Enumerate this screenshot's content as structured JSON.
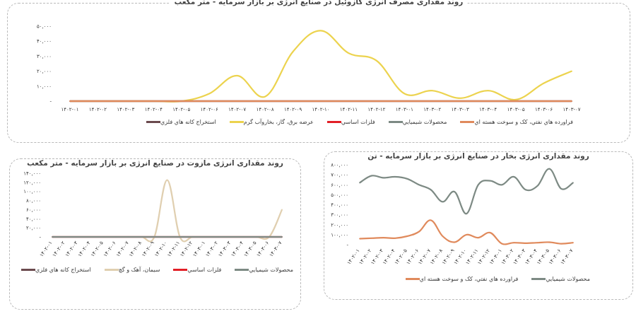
{
  "chart_data": [
    {
      "type": "line",
      "title": "روند مقداری مصرف انرژی گازوئیل در صنایع انرژی بر بازار سرمایه - متر مکعب",
      "categories": [
        "۱۴۰۲-۰۱",
        "۱۴۰۲-۰۲",
        "۱۴۰۲-۰۳",
        "۱۴۰۲-۰۴",
        "۱۴۰۲-۰۵",
        "۱۴۰۲-۰۶",
        "۱۴۰۲-۰۷",
        "۱۴۰۲-۰۸",
        "۱۴۰۲-۰۹",
        "۱۴۰۲-۱۰",
        "۱۴۰۲-۱۱",
        "۱۴۰۲-۱۲",
        "۱۴۰۳-۰۱",
        "۱۴۰۳-۰۲",
        "۱۴۰۳-۰۳",
        "۱۴۰۳-۰۴",
        "۱۴۰۳-۰۵",
        "۱۴۰۳-۰۶",
        "۱۴۰۳-۰۷"
      ],
      "y_tick_labels": [
        "-",
        "۱۰,۰۰۰",
        "۲۰,۰۰۰",
        "۳۰,۰۰۰",
        "۴۰,۰۰۰",
        "۵۰,۰۰۰"
      ],
      "ylim": [
        0,
        50000
      ],
      "grid": false,
      "legend_position": "bottom",
      "series": [
        {
          "name": "استخراج کانه هاي فلزي",
          "color": "#6b4a4e",
          "values": [
            0,
            0,
            0,
            0,
            0,
            0,
            0,
            0,
            0,
            0,
            0,
            0,
            0,
            0,
            0,
            0,
            0,
            0,
            0
          ]
        },
        {
          "name": "عرضه برق، گاز، بخاروآب گرم",
          "color": "#ecd34e",
          "values": [
            0,
            0,
            0,
            0,
            0,
            5000,
            17000,
            3000,
            33000,
            47000,
            32000,
            27000,
            5000,
            7000,
            2000,
            7000,
            1000,
            12000,
            20000
          ]
        },
        {
          "name": "فلزات اساسي",
          "color": "#e21f26",
          "values": [
            0,
            0,
            0,
            0,
            0,
            0,
            0,
            0,
            0,
            0,
            0,
            0,
            0,
            0,
            0,
            0,
            0,
            0,
            0
          ]
        },
        {
          "name": "محصولات شيميايي",
          "color": "#7d8a84",
          "values": [
            0,
            0,
            0,
            0,
            0,
            0,
            0,
            0,
            0,
            0,
            0,
            0,
            0,
            0,
            0,
            0,
            0,
            0,
            0
          ]
        },
        {
          "name": "فراورده هاي نفتي، كک و سوخت هسته اي",
          "color": "#e08a5c",
          "values": [
            0,
            0,
            0,
            0,
            0,
            0,
            0,
            0,
            0,
            0,
            0,
            0,
            0,
            0,
            0,
            0,
            0,
            0,
            0
          ]
        }
      ]
    },
    {
      "type": "line",
      "title": "روند مقداری انرژی مازوت در صنایع انرژی بر بازار سرمایه - متر مکعب",
      "categories": [
        "۱۴۰۲-۰۱",
        "۱۴۰۲-۰۲",
        "۱۴۰۲-۰۳",
        "۱۴۰۲-۰۴",
        "۱۴۰۲-۰۵",
        "۱۴۰۲-۰۶",
        "۱۴۰۲-۰۷",
        "۱۴۰۲-۰۸",
        "۱۴۰۲-۰۹",
        "۱۴۰۲-۱۰",
        "۱۴۰۲-۱۱",
        "۱۴۰۲-۱۲",
        "۱۴۰۳-۰۱",
        "۱۴۰۳-۰۲",
        "۱۴۰۳-۰۳",
        "۱۴۰۳-۰۴",
        "۱۴۰۳-۰۵",
        "۱۴۰۳-۰۶",
        "۱۴۰۳-۰۷"
      ],
      "y_tick_labels": [
        "-",
        "۲۰,۰۰۰",
        "۴۰,۰۰۰",
        "۶۰,۰۰۰",
        "۸۰,۰۰۰",
        "۱۰۰,۰۰۰",
        "۱۲۰,۰۰۰",
        "۱۴۰,۰۰۰"
      ],
      "ylim": [
        0,
        140000
      ],
      "grid": false,
      "legend_position": "bottom",
      "series": [
        {
          "name": "استخراج كانه هاي فلزي",
          "color": "#6b4a4e",
          "values": [
            0,
            0,
            0,
            0,
            0,
            0,
            0,
            0,
            0,
            0,
            0,
            0,
            0,
            0,
            0,
            0,
            0,
            0,
            0
          ]
        },
        {
          "name": "سيمان، آهک و گچ",
          "color": "#e0cfb0",
          "values": [
            0,
            0,
            0,
            0,
            0,
            0,
            0,
            0,
            0,
            125000,
            0,
            0,
            0,
            0,
            0,
            0,
            0,
            0,
            60000
          ]
        },
        {
          "name": "فلزات اساسي",
          "color": "#e21f26",
          "values": [
            0,
            0,
            0,
            0,
            0,
            0,
            0,
            0,
            0,
            0,
            0,
            0,
            0,
            0,
            0,
            0,
            0,
            0,
            0
          ]
        },
        {
          "name": "محصولات شيميايي",
          "color": "#7d8a84",
          "values": [
            0,
            0,
            0,
            0,
            0,
            0,
            0,
            0,
            0,
            0,
            0,
            0,
            0,
            0,
            0,
            0,
            0,
            0,
            0
          ]
        }
      ]
    },
    {
      "type": "line",
      "title": "روند مقداری انرژی بخار در صنایع انرژی بر بازار سرمایه - تن",
      "categories": [
        "۱۴۰۲-۰۱",
        "۱۴۰۲-۰۲",
        "۱۴۰۲-۰۳",
        "۱۴۰۲-۰۴",
        "۱۴۰۲-۰۵",
        "۱۴۰۲-۰۶",
        "۱۴۰۲-۰۷",
        "۱۴۰۲-۰۸",
        "۱۴۰۲-۰۹",
        "۱۴۰۲-۱۰",
        "۱۴۰۲-۱۱",
        "۱۴۰۲-۱۲",
        "۱۴۰۳-۰۱",
        "۱۴۰۳-۰۲",
        "۱۴۰۳-۰۳",
        "۱۴۰۳-۰۴",
        "۱۴۰۳-۰۵",
        "۱۴۰۳-۰۶",
        "۱۴۰۳-۰۷"
      ],
      "y_tick_labels": [
        "-",
        "۱۰۰,۰۰۰",
        "۲۰۰,۰۰۰",
        "۳۰۰,۰۰۰",
        "۴۰۰,۰۰۰",
        "۵۰۰,۰۰۰",
        "۶۰۰,۰۰۰",
        "۷۰۰,۰۰۰",
        "۸۰۰,۰۰۰"
      ],
      "ylim": [
        0,
        800000
      ],
      "grid": false,
      "legend_position": "bottom",
      "series": [
        {
          "name": "فراورده هاي نفتي، كک و سوخت هسته اي",
          "color": "#e08a5c",
          "values": [
            60000,
            65000,
            70000,
            65000,
            85000,
            130000,
            245000,
            85000,
            25000,
            100000,
            70000,
            120000,
            10000,
            20000,
            15000,
            20000,
            25000,
            10000,
            20000
          ]
        },
        {
          "name": "محصولات شيميايي",
          "color": "#7d8a84",
          "values": [
            620000,
            690000,
            670000,
            680000,
            660000,
            600000,
            550000,
            430000,
            530000,
            310000,
            600000,
            640000,
            600000,
            680000,
            550000,
            590000,
            760000,
            560000,
            620000
          ]
        }
      ]
    }
  ]
}
